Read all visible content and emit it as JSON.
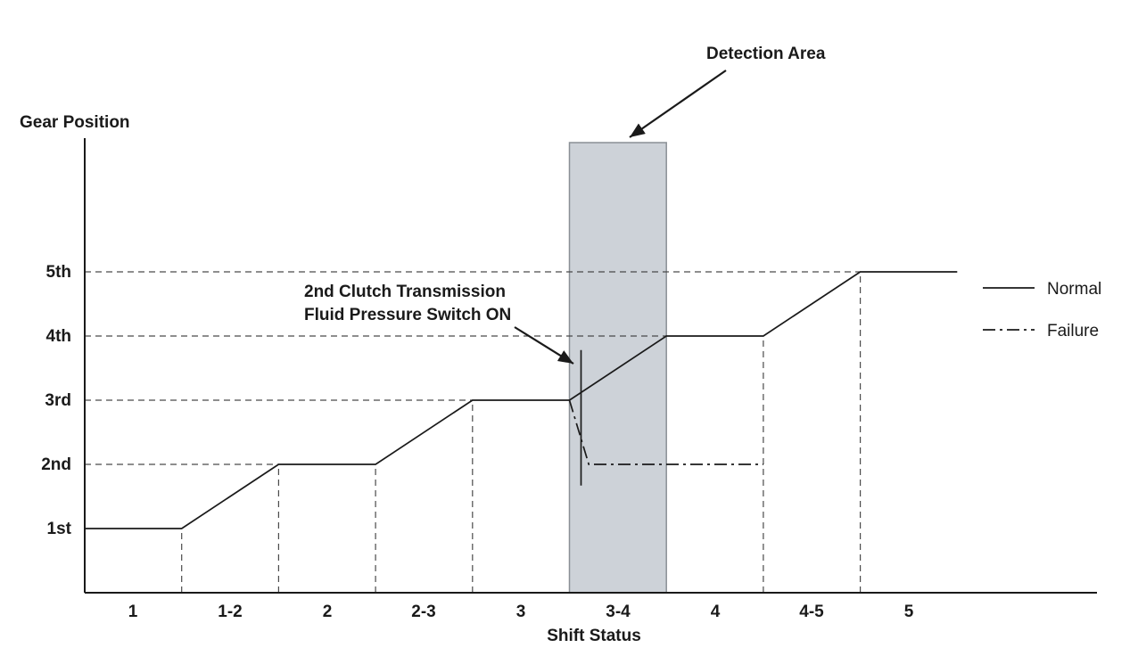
{
  "chart_data": {
    "type": "line",
    "title": "",
    "xlabel": "Shift Status",
    "ylabel": "Gear Position",
    "x_tick_labels": [
      "1",
      "1-2",
      "2",
      "2-3",
      "3",
      "3-4",
      "4",
      "4-5",
      "5"
    ],
    "y_tick_labels": [
      "1st",
      "2nd",
      "3rd",
      "4th",
      "5th"
    ],
    "y_tick_values": [
      1,
      2,
      3,
      4,
      5
    ],
    "x_units_note": "x measured in shift-status segments; each labeled status spans one unit starting at 0",
    "grid": "dashed reference lines to each gear level and shift boundary",
    "legend_position": "right",
    "series": [
      {
        "name": "Normal",
        "style": "solid",
        "points": [
          [
            0,
            1
          ],
          [
            1,
            1
          ],
          [
            2,
            2
          ],
          [
            3,
            2
          ],
          [
            4,
            3
          ],
          [
            5,
            3
          ],
          [
            6,
            4
          ],
          [
            7,
            4
          ],
          [
            8,
            5
          ],
          [
            9,
            5
          ]
        ]
      },
      {
        "name": "Failure",
        "style": "dash-dot",
        "points": [
          [
            5,
            3
          ],
          [
            5.2,
            2
          ],
          [
            7,
            2
          ]
        ]
      }
    ],
    "h_gridlines": [
      {
        "gear": 2,
        "x_end": 2
      },
      {
        "gear": 3,
        "x_end": 4
      },
      {
        "gear": 4,
        "x_end": 6
      },
      {
        "gear": 5,
        "x_end": 8
      }
    ],
    "v_gridlines": [
      {
        "x": 1,
        "gear_top": 1
      },
      {
        "x": 2,
        "gear_top": 2
      },
      {
        "x": 3,
        "gear_top": 2
      },
      {
        "x": 4,
        "gear_top": 3
      },
      {
        "x": 7,
        "gear_top": 4
      },
      {
        "x": 8,
        "gear_top": 5
      }
    ],
    "detection_area": {
      "label": "Detection Area",
      "x_start": 5,
      "x_end": 6,
      "fill": "#cdd2d8"
    },
    "switch_marker": {
      "x": 5.12,
      "y_top": 3.78,
      "y_bottom": 1.67
    },
    "annotations": {
      "detection_area_label": "Detection Area",
      "switch_label_line1": "2nd Clutch Transmission",
      "switch_label_line2": "Fluid Pressure Switch ON"
    },
    "legend": {
      "items": [
        {
          "label": "Normal",
          "style": "solid"
        },
        {
          "label": "Failure",
          "style": "dash-dot"
        }
      ]
    },
    "colors": {
      "line": "#1a1a1a",
      "detection_area_fill": "#cdd2d8",
      "background": "#ffffff"
    }
  }
}
